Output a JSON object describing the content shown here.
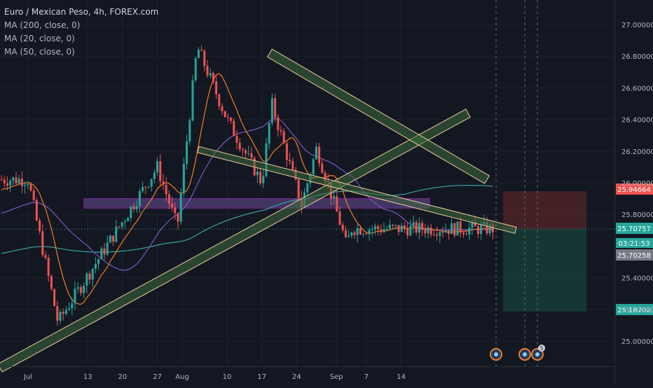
{
  "legend": {
    "title": "Euro / Mexican Peso, 4h, FOREX.com",
    "indicators": [
      "MA (200, close, 0)",
      "MA (20, close, 0)",
      "MA (50, close, 0)"
    ]
  },
  "colors": {
    "background": "#131722",
    "grid": "#1e222d",
    "up": "#26a69a",
    "down": "#ef5350",
    "ma200": "#3aa3a0",
    "ma20": "#f57c1f",
    "ma50": "#7e57c2",
    "zone_fill": "#4a3b6e",
    "zone_stroke": "#9c27b0",
    "channel_fill": "#3d6b3d",
    "channel_stroke": "#f0c8a0",
    "stop_zone": "#4a2226",
    "target_zone": "#173a35"
  },
  "chart_data": {
    "type": "candlestick",
    "title": "Euro / Mexican Peso, 4h, FOREX.com",
    "ylim": [
      24.93,
      27.07
    ],
    "y_ticks": [
      "27.00000",
      "26.80000",
      "26.60000",
      "26.40000",
      "26.20000",
      "26.00000",
      "25.80000",
      "25.40000",
      "25.20000",
      "25.00000"
    ],
    "x_ticks": [
      "Jul",
      "13",
      "20",
      "27",
      "Aug",
      "10",
      "17",
      "24",
      "Sep",
      "7",
      "14"
    ],
    "price_labels": [
      {
        "text": "25.94664",
        "value": 25.94664,
        "color": "#ef5350"
      },
      {
        "text": "25.70757",
        "value": 25.70757,
        "color": "#26a69a"
      },
      {
        "text": "03:21:53",
        "value": 25.67,
        "color": "#26a69a"
      },
      {
        "text": "25.70258",
        "value": 25.70258,
        "color": "#787b86"
      },
      {
        "text": "25.18702",
        "value": 25.18702,
        "color": "#26a69a"
      }
    ],
    "current_price": 25.70757,
    "stop_level": 25.94664,
    "target_level": 25.18702,
    "key_points": [
      {
        "x": "Jul 1",
        "price": 26.02
      },
      {
        "x": "Jul 7",
        "price": 25.12
      },
      {
        "x": "Jul 27",
        "price": 26.1
      },
      {
        "x": "Jul 31",
        "price": 25.72
      },
      {
        "x": "Aug 4",
        "price": 26.86
      },
      {
        "x": "Aug 10",
        "price": 26.4
      },
      {
        "x": "Aug 17",
        "price": 26.0
      },
      {
        "x": "Aug 19",
        "price": 26.5
      },
      {
        "x": "Aug 25",
        "price": 25.86
      },
      {
        "x": "Aug 28",
        "price": 26.22
      },
      {
        "x": "Sep 2",
        "price": 25.72
      },
      {
        "x": "Sep 3",
        "price": 25.6
      },
      {
        "x": "Sep 4",
        "price": 25.71
      }
    ],
    "event_markers": [
      "Sep 4",
      "Sep 7",
      "Sep 8"
    ],
    "event_badge": "5"
  }
}
